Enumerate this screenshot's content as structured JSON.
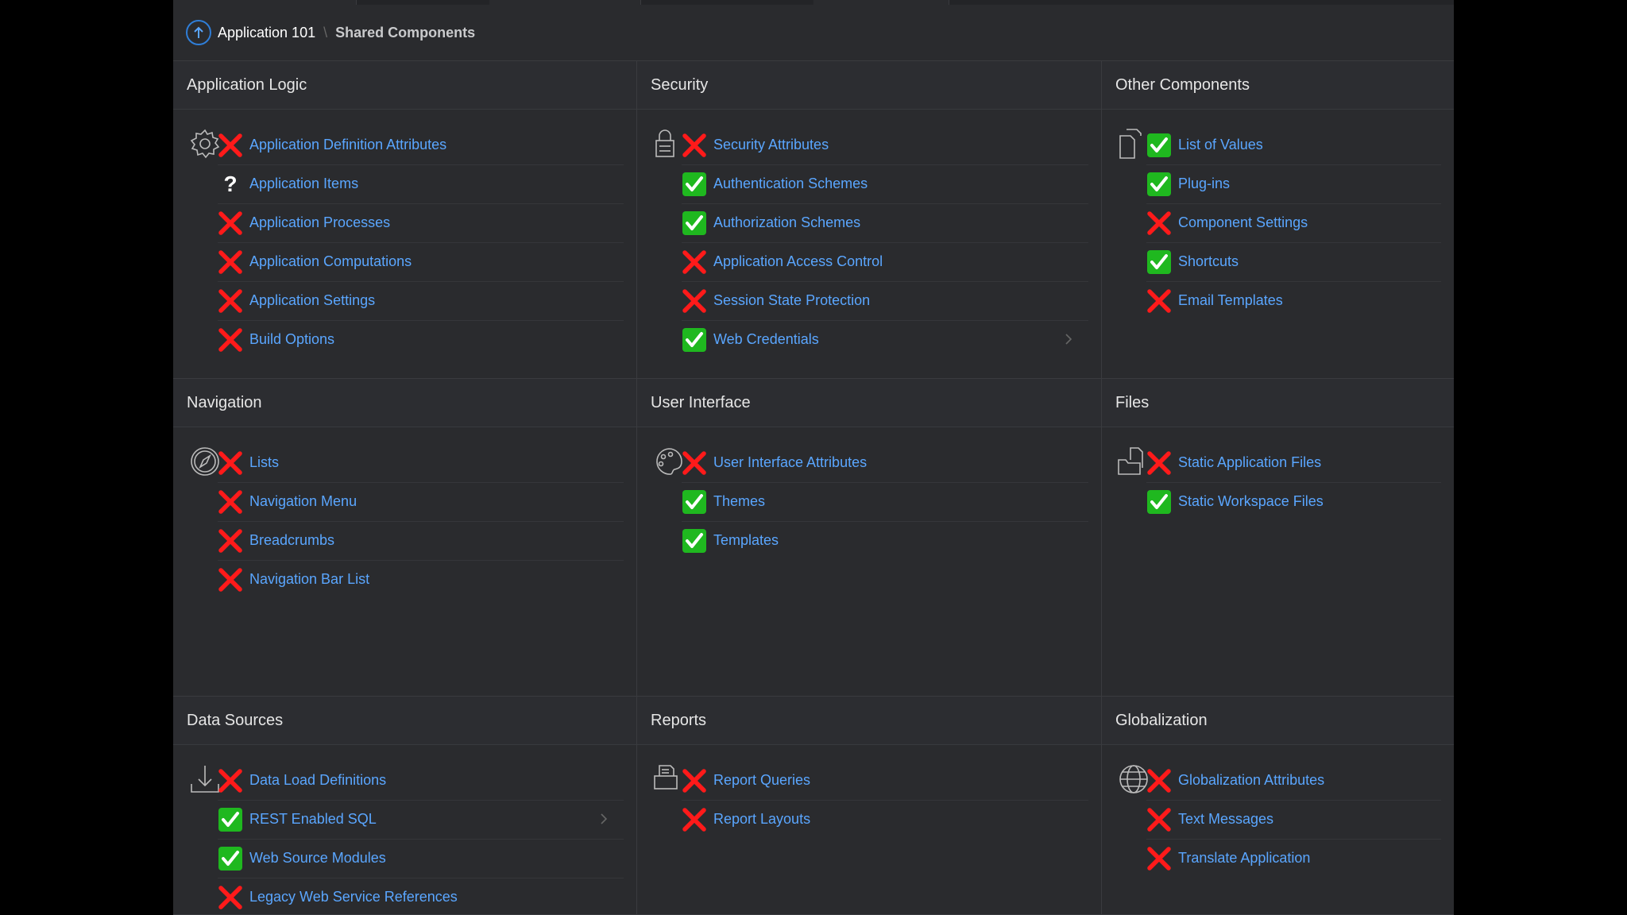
{
  "breadcrumb": {
    "application": "Application 101",
    "page": "Shared Components"
  },
  "colors": {
    "background": "#2a2b2e",
    "link": "#5aa6ff",
    "check": "#1fb81f",
    "cross": "#ff1a1a"
  },
  "panels": {
    "application_logic": {
      "title": "Application Logic",
      "icon": "gear-icon",
      "items": [
        {
          "label": "Application Definition Attributes",
          "status": "cross"
        },
        {
          "label": "Application Items",
          "status": "question"
        },
        {
          "label": "Application Processes",
          "status": "cross"
        },
        {
          "label": "Application Computations",
          "status": "cross"
        },
        {
          "label": "Application Settings",
          "status": "cross"
        },
        {
          "label": "Build Options",
          "status": "cross"
        }
      ]
    },
    "security": {
      "title": "Security",
      "icon": "lock-icon",
      "items": [
        {
          "label": "Security Attributes",
          "status": "cross"
        },
        {
          "label": "Authentication Schemes",
          "status": "check"
        },
        {
          "label": "Authorization Schemes",
          "status": "check"
        },
        {
          "label": "Application Access Control",
          "status": "cross"
        },
        {
          "label": "Session State Protection",
          "status": "cross"
        },
        {
          "label": "Web Credentials",
          "status": "check"
        }
      ]
    },
    "other_components": {
      "title": "Other Components",
      "icon": "documents-icon",
      "items": [
        {
          "label": "List of Values",
          "status": "check"
        },
        {
          "label": "Plug-ins",
          "status": "check"
        },
        {
          "label": "Component Settings",
          "status": "cross"
        },
        {
          "label": "Shortcuts",
          "status": "check"
        },
        {
          "label": "Email Templates",
          "status": "cross"
        }
      ]
    },
    "navigation": {
      "title": "Navigation",
      "icon": "compass-icon",
      "items": [
        {
          "label": "Lists",
          "status": "cross"
        },
        {
          "label": "Navigation Menu",
          "status": "cross"
        },
        {
          "label": "Breadcrumbs",
          "status": "cross"
        },
        {
          "label": "Navigation Bar List",
          "status": "cross"
        }
      ]
    },
    "user_interface": {
      "title": "User Interface",
      "icon": "palette-icon",
      "items": [
        {
          "label": "User Interface Attributes",
          "status": "cross"
        },
        {
          "label": "Themes",
          "status": "check"
        },
        {
          "label": "Templates",
          "status": "check"
        }
      ]
    },
    "files": {
      "title": "Files",
      "icon": "folder-files-icon",
      "items": [
        {
          "label": "Static Application Files",
          "status": "cross"
        },
        {
          "label": "Static Workspace Files",
          "status": "check"
        }
      ]
    },
    "data_sources": {
      "title": "Data Sources",
      "icon": "download-icon",
      "items": [
        {
          "label": "Data Load Definitions",
          "status": "cross"
        },
        {
          "label": "REST Enabled SQL",
          "status": "check"
        },
        {
          "label": "Web Source Modules",
          "status": "check"
        },
        {
          "label": "Legacy Web Service References",
          "status": "cross"
        }
      ]
    },
    "reports": {
      "title": "Reports",
      "icon": "report-icon",
      "items": [
        {
          "label": "Report Queries",
          "status": "cross"
        },
        {
          "label": "Report Layouts",
          "status": "cross"
        }
      ]
    },
    "globalization": {
      "title": "Globalization",
      "icon": "globe-icon",
      "items": [
        {
          "label": "Globalization Attributes",
          "status": "cross"
        },
        {
          "label": "Text Messages",
          "status": "cross"
        },
        {
          "label": "Translate Application",
          "status": "cross"
        }
      ]
    }
  }
}
